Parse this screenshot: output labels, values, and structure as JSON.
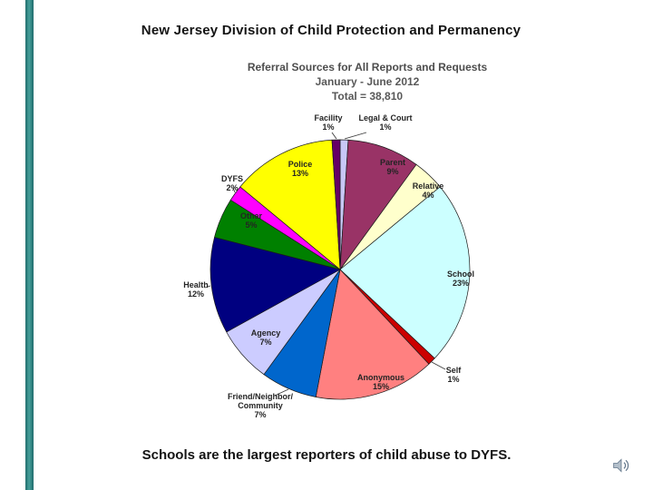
{
  "page": {
    "header_title": "New Jersey Division of Child Protection and Permanency",
    "caption": "Schools are the largest reporters of child abuse to DYFS.",
    "accent_strip_color": "#2e7f7f",
    "icons": {
      "speaker": "speaker-icon"
    }
  },
  "chart_data": {
    "type": "pie",
    "title": "Referral Sources for All Reports and Requests",
    "subtitle": "January - June 2012",
    "total_label": "Total = 38,810",
    "unit": "percent",
    "legend": false,
    "label_format": "name + percent, inside for large slices, outside with leader lines for small slices",
    "slices": [
      {
        "label": "Legal & Court",
        "value": 1,
        "color": "#c8c8f6",
        "label_pos": "outside"
      },
      {
        "label": "Parent",
        "value": 9,
        "color": "#993366",
        "label_pos": "inside"
      },
      {
        "label": "Relative",
        "value": 4,
        "color": "#ffffcc",
        "label_pos": "inside"
      },
      {
        "label": "School",
        "value": 23,
        "color": "#ccffff",
        "label_pos": "inside"
      },
      {
        "label": "Self",
        "value": 1,
        "color": "#cc0000",
        "label_pos": "outside"
      },
      {
        "label": "Anonymous",
        "value": 15,
        "color": "#ff8080",
        "label_pos": "inside"
      },
      {
        "label": "Friend/Neighbor/Community",
        "label_lines": [
          "Friend/Neighbor/",
          "Community"
        ],
        "value": 7,
        "color": "#0066cc",
        "label_pos": "outside"
      },
      {
        "label": "Agency",
        "value": 7,
        "color": "#ccccff",
        "label_pos": "inside"
      },
      {
        "label": "Health",
        "value": 12,
        "color": "#000080",
        "label_pos": "outside"
      },
      {
        "label": "Other",
        "value": 5,
        "color": "#008000",
        "label_pos": "inside"
      },
      {
        "label": "DYFS",
        "value": 2,
        "color": "#ff00ff",
        "label_pos": "outside"
      },
      {
        "label": "Police",
        "value": 13,
        "color": "#ffff00",
        "label_pos": "inside"
      },
      {
        "label": "Facility",
        "value": 1,
        "color": "#660066",
        "label_pos": "outside"
      }
    ]
  }
}
